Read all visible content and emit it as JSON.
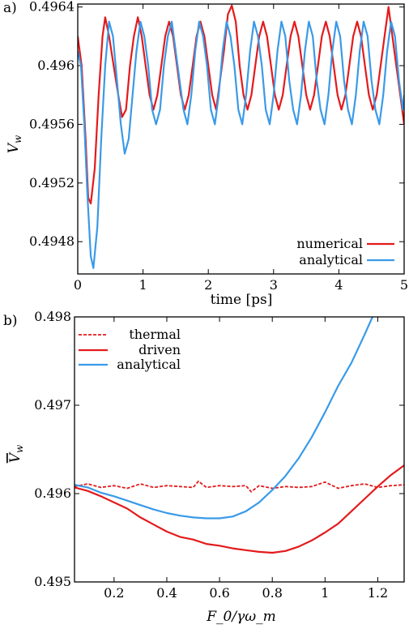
{
  "colors": {
    "numerical": "#e41a1c",
    "analytical": "#3a9ae8",
    "thermal": "#e41a1c",
    "driven": "#e41a1c"
  },
  "chart_data": [
    {
      "type": "line",
      "panel": "a)",
      "title": "",
      "xlabel": "time [ps]",
      "ylabel": "V_w",
      "ylabel_main": "V",
      "ylabel_sub": "w",
      "xlim": [
        0,
        5
      ],
      "ylim": [
        0.49458,
        0.49642
      ],
      "xticks": [
        0,
        1,
        2,
        3,
        4,
        5
      ],
      "xtick_labels": [
        "0",
        "1",
        "2",
        "3",
        "4",
        "5"
      ],
      "yticks": [
        0.4948,
        0.4952,
        0.4956,
        0.496,
        0.4964
      ],
      "ytick_labels": [
        "0.4948",
        "0.4952",
        "0.4956",
        "0.496",
        "0.4964"
      ],
      "grid": false,
      "legend": "bottom-right",
      "series": [
        {
          "name": "numerical",
          "color_key": "numerical",
          "x": [
            0.0,
            0.06,
            0.12,
            0.16,
            0.2,
            0.26,
            0.32,
            0.38,
            0.42,
            0.48,
            0.55,
            0.62,
            0.68,
            0.74,
            0.8,
            0.86,
            0.92,
            0.98,
            1.04,
            1.1,
            1.16,
            1.22,
            1.28,
            1.34,
            1.4,
            1.46,
            1.52,
            1.58,
            1.64,
            1.7,
            1.76,
            1.82,
            1.88,
            1.94,
            2.0,
            2.06,
            2.12,
            2.18,
            2.24,
            2.3,
            2.36,
            2.42,
            2.48,
            2.54,
            2.6,
            2.66,
            2.72,
            2.78,
            2.84,
            2.9,
            2.96,
            3.02,
            3.08,
            3.14,
            3.2,
            3.26,
            3.32,
            3.38,
            3.44,
            3.5,
            3.56,
            3.62,
            3.68,
            3.74,
            3.8,
            3.86,
            3.92,
            3.98,
            4.04,
            4.1,
            4.16,
            4.22,
            4.28,
            4.34,
            4.4,
            4.46,
            4.52,
            4.58,
            4.64,
            4.7,
            4.76,
            4.82,
            4.88,
            4.94,
            5.0
          ],
          "y": [
            0.4962,
            0.496,
            0.4955,
            0.4951,
            0.49506,
            0.4953,
            0.4958,
            0.4962,
            0.49633,
            0.4962,
            0.496,
            0.4958,
            0.49565,
            0.4957,
            0.496,
            0.4962,
            0.49633,
            0.4962,
            0.496,
            0.4958,
            0.4957,
            0.4958,
            0.496,
            0.4962,
            0.4963,
            0.4962,
            0.496,
            0.4958,
            0.4957,
            0.4958,
            0.496,
            0.4962,
            0.4963,
            0.4962,
            0.496,
            0.4958,
            0.4957,
            0.4959,
            0.4961,
            0.49635,
            0.49641,
            0.4963,
            0.496,
            0.4958,
            0.4957,
            0.4958,
            0.496,
            0.4962,
            0.4963,
            0.4962,
            0.496,
            0.4958,
            0.4957,
            0.4958,
            0.496,
            0.4962,
            0.4963,
            0.4962,
            0.496,
            0.4958,
            0.4957,
            0.4958,
            0.496,
            0.4962,
            0.4963,
            0.4962,
            0.496,
            0.4958,
            0.4957,
            0.4958,
            0.496,
            0.4962,
            0.4963,
            0.4962,
            0.496,
            0.4958,
            0.4957,
            0.4958,
            0.496,
            0.4962,
            0.4964,
            0.4962,
            0.496,
            0.4958,
            0.4956
          ]
        },
        {
          "name": "analytical",
          "color_key": "analytical",
          "x": [
            0.0,
            0.05,
            0.1,
            0.15,
            0.2,
            0.24,
            0.3,
            0.36,
            0.42,
            0.48,
            0.54,
            0.6,
            0.66,
            0.72,
            0.78,
            0.84,
            0.9,
            0.96,
            1.02,
            1.08,
            1.14,
            1.2,
            1.26,
            1.32,
            1.38,
            1.44,
            1.5,
            1.56,
            1.62,
            1.68,
            1.74,
            1.8,
            1.86,
            1.92,
            1.98,
            2.04,
            2.1,
            2.16,
            2.22,
            2.28,
            2.34,
            2.4,
            2.46,
            2.52,
            2.58,
            2.64,
            2.7,
            2.76,
            2.82,
            2.88,
            2.94,
            3.0,
            3.06,
            3.12,
            3.18,
            3.24,
            3.3,
            3.36,
            3.42,
            3.48,
            3.54,
            3.6,
            3.66,
            3.72,
            3.78,
            3.84,
            3.9,
            3.96,
            4.02,
            4.08,
            4.14,
            4.2,
            4.26,
            4.32,
            4.38,
            4.44,
            4.5,
            4.56,
            4.62,
            4.68,
            4.74,
            4.8,
            4.86,
            4.92,
            4.98,
            5.0
          ],
          "y": [
            0.4961,
            0.496,
            0.4956,
            0.4951,
            0.4947,
            0.49462,
            0.4949,
            0.4955,
            0.496,
            0.4963,
            0.4962,
            0.4959,
            0.4956,
            0.4954,
            0.4955,
            0.4958,
            0.4961,
            0.4963,
            0.4962,
            0.496,
            0.4957,
            0.4956,
            0.4957,
            0.496,
            0.4962,
            0.4963,
            0.4961,
            0.4959,
            0.4957,
            0.4956,
            0.4958,
            0.4961,
            0.4963,
            0.4962,
            0.496,
            0.4957,
            0.4956,
            0.4958,
            0.4961,
            0.4963,
            0.4962,
            0.496,
            0.4957,
            0.4956,
            0.4958,
            0.4961,
            0.4963,
            0.4962,
            0.496,
            0.4957,
            0.4956,
            0.4958,
            0.4961,
            0.4963,
            0.4962,
            0.4959,
            0.4957,
            0.4956,
            0.4958,
            0.4961,
            0.4963,
            0.4962,
            0.4959,
            0.4957,
            0.4956,
            0.4958,
            0.4961,
            0.4963,
            0.4962,
            0.4959,
            0.4957,
            0.4956,
            0.4958,
            0.4961,
            0.4963,
            0.4962,
            0.4959,
            0.4957,
            0.4956,
            0.4958,
            0.4961,
            0.4963,
            0.4962,
            0.4959,
            0.4957,
            0.4958
          ]
        }
      ]
    },
    {
      "type": "line",
      "panel": "b)",
      "title": "",
      "xlabel": "F_0/γω_m",
      "ylabel": "V̄_w",
      "ylabel_main": "V",
      "ylabel_sub": "w",
      "xlim": [
        0.05,
        1.3
      ],
      "ylim": [
        0.495,
        0.498
      ],
      "xticks": [
        0.2,
        0.4,
        0.6,
        0.8,
        1.0,
        1.2
      ],
      "xtick_labels": [
        "0.2",
        "0.4",
        "0.6",
        "0.8",
        "1",
        "1.2"
      ],
      "yticks": [
        0.495,
        0.496,
        0.497,
        0.498
      ],
      "ytick_labels": [
        "0.495",
        "0.496",
        "0.497",
        "0.498"
      ],
      "grid": false,
      "legend": "top-left",
      "series": [
        {
          "name": "thermal",
          "color_key": "thermal",
          "dashed": true,
          "x": [
            0.05,
            0.1,
            0.15,
            0.2,
            0.25,
            0.3,
            0.35,
            0.4,
            0.45,
            0.5,
            0.52,
            0.55,
            0.6,
            0.65,
            0.7,
            0.72,
            0.75,
            0.8,
            0.85,
            0.9,
            0.95,
            1.0,
            1.05,
            1.1,
            1.15,
            1.2,
            1.25,
            1.3
          ],
          "y": [
            0.49608,
            0.49611,
            0.49607,
            0.49609,
            0.49606,
            0.49611,
            0.49607,
            0.49609,
            0.49608,
            0.49607,
            0.49614,
            0.49607,
            0.49609,
            0.49608,
            0.49609,
            0.49602,
            0.49609,
            0.49606,
            0.49608,
            0.49607,
            0.49608,
            0.49613,
            0.49606,
            0.49609,
            0.49611,
            0.49607,
            0.49609,
            0.4961
          ]
        },
        {
          "name": "driven",
          "color_key": "driven",
          "dashed": false,
          "x": [
            0.05,
            0.1,
            0.15,
            0.2,
            0.25,
            0.3,
            0.35,
            0.4,
            0.45,
            0.5,
            0.55,
            0.6,
            0.65,
            0.7,
            0.75,
            0.8,
            0.85,
            0.9,
            0.95,
            1.0,
            1.05,
            1.1,
            1.15,
            1.2,
            1.25,
            1.3
          ],
          "y": [
            0.49607,
            0.49603,
            0.49597,
            0.4959,
            0.49583,
            0.49573,
            0.49565,
            0.49557,
            0.49551,
            0.49548,
            0.49543,
            0.49541,
            0.49538,
            0.49536,
            0.49534,
            0.49533,
            0.49535,
            0.4954,
            0.49547,
            0.49556,
            0.49566,
            0.4958,
            0.49594,
            0.49608,
            0.49621,
            0.49632
          ]
        },
        {
          "name": "analytical",
          "color_key": "analytical",
          "dashed": false,
          "x": [
            0.05,
            0.1,
            0.15,
            0.2,
            0.25,
            0.3,
            0.35,
            0.4,
            0.45,
            0.5,
            0.55,
            0.6,
            0.65,
            0.7,
            0.75,
            0.8,
            0.85,
            0.9,
            0.95,
            1.0,
            1.05,
            1.1,
            1.15,
            1.18
          ],
          "y": [
            0.4961,
            0.49607,
            0.49601,
            0.49597,
            0.49592,
            0.49587,
            0.49582,
            0.49578,
            0.49575,
            0.49573,
            0.49572,
            0.49572,
            0.49574,
            0.4958,
            0.4959,
            0.49604,
            0.4962,
            0.4964,
            0.49664,
            0.49692,
            0.49722,
            0.49748,
            0.4978,
            0.498
          ]
        }
      ]
    }
  ]
}
